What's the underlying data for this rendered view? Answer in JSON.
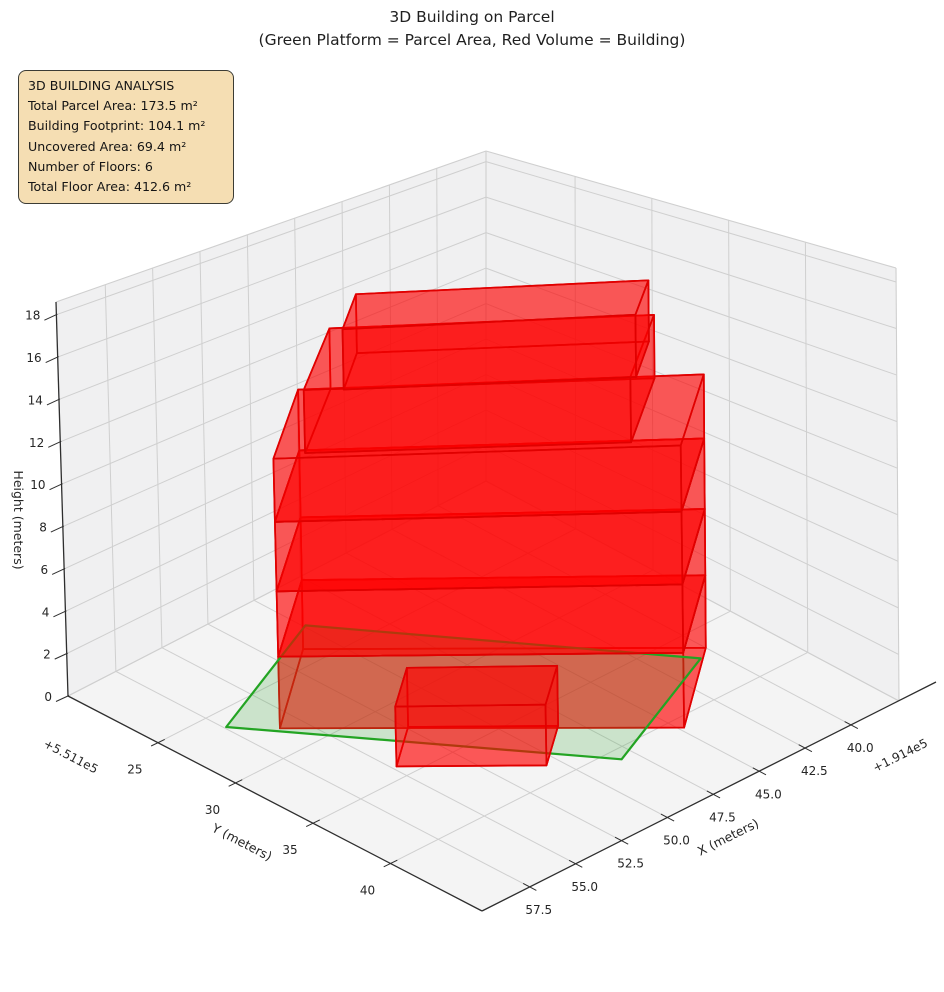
{
  "title": {
    "line1": "3D Building on Parcel",
    "line2": "(Green Platform = Parcel Area, Red Volume = Building)"
  },
  "info_box": {
    "lines": [
      "3D BUILDING ANALYSIS",
      "Total Parcel Area: 173.5 m²",
      "Building Footprint: 104.1 m²",
      "Uncovered Area: 69.4 m²",
      "Number of Floors: 6",
      "Total Floor Area: 412.6 m²"
    ],
    "bg_color": "#f5deb3",
    "border_color": "#3c3c35"
  },
  "chart_data": {
    "type": "3d-building-plot",
    "legend_note": "Green Platform = Parcel Area, Red Volume = Building",
    "stats": {
      "total_parcel_area_m2": 173.5,
      "building_footprint_m2": 104.1,
      "uncovered_area_m2": 69.4,
      "number_of_floors": 6,
      "total_floor_area_m2": 412.6
    },
    "x_axis": {
      "label": "X (meters)",
      "offset_text": "+1.914e5",
      "tick_values": [
        40.0,
        42.5,
        45.0,
        47.5,
        50.0,
        52.5,
        55.0,
        57.5
      ],
      "tick_labels": [
        "40.0",
        "42.5",
        "45.0",
        "47.5",
        "50.0",
        "52.5",
        "55.0",
        "57.5"
      ]
    },
    "y_axis": {
      "label": "Y (meters)",
      "offset_text": "+5.511e5",
      "tick_values": [
        25,
        30,
        35,
        40
      ],
      "tick_labels": [
        "25",
        "30",
        "35",
        "40"
      ]
    },
    "z_axis": {
      "label": "Height (meters)",
      "tick_values": [
        0,
        2,
        4,
        6,
        8,
        10,
        12,
        14,
        16,
        18
      ],
      "tick_labels": [
        "0",
        "2",
        "4",
        "6",
        "8",
        "10",
        "12",
        "14",
        "16",
        "18"
      ]
    },
    "axes_limits": {
      "x": [
        37.4,
        60.1
      ],
      "y": [
        19.2,
        45.9
      ],
      "z": [
        0,
        18.6
      ]
    },
    "parcel": {
      "name": "parcel-platform",
      "z": 0,
      "polygon": [
        [
          57.4,
          26.2
        ],
        [
          49.9,
          22.4
        ],
        [
          40.7,
          37.0
        ],
        [
          48.2,
          40.8
        ]
      ]
    },
    "volumes": [
      {
        "name": "floor-1",
        "z0": 0.0,
        "z1": 3.4,
        "footprint": [
          [
            56.0,
            28.0
          ],
          [
            44.8,
            40.8
          ],
          [
            40.0,
            36.5
          ],
          [
            51.2,
            23.8
          ]
        ]
      },
      {
        "name": "floor-2",
        "z0": 3.4,
        "z1": 6.5,
        "footprint": [
          [
            56.0,
            28.0
          ],
          [
            44.8,
            40.8
          ],
          [
            40.0,
            36.5
          ],
          [
            51.2,
            23.8
          ]
        ]
      },
      {
        "name": "floor-3",
        "z0": 6.5,
        "z1": 9.8,
        "footprint": [
          [
            56.0,
            28.0
          ],
          [
            44.8,
            40.8
          ],
          [
            40.0,
            36.5
          ],
          [
            51.2,
            23.8
          ]
        ]
      },
      {
        "name": "floor-4",
        "z0": 9.8,
        "z1": 12.8,
        "footprint": [
          [
            56.0,
            28.0
          ],
          [
            44.8,
            40.8
          ],
          [
            40.0,
            36.5
          ],
          [
            51.2,
            23.8
          ]
        ]
      },
      {
        "name": "floor-5",
        "z0": 12.8,
        "z1": 15.8,
        "footprint": [
          [
            54.8,
            28.6
          ],
          [
            45.8,
            38.8
          ],
          [
            41.4,
            35.0
          ],
          [
            50.3,
            24.8
          ]
        ]
      },
      {
        "name": "floor-6",
        "z0": 14.6,
        "z1": 17.5,
        "footprint": [
          [
            52.2,
            28.0
          ],
          [
            44.1,
            37.1
          ],
          [
            41.6,
            34.9
          ],
          [
            49.6,
            25.7
          ]
        ]
      },
      {
        "name": "ground-annex",
        "z0": 0.0,
        "z1": 2.8,
        "footprint": [
          [
            54.8,
            34.1
          ],
          [
            50.6,
            38.8
          ],
          [
            48.2,
            36.7
          ],
          [
            52.4,
            32.0
          ]
        ]
      }
    ],
    "draw_order": [
      "floor-1",
      "parcel",
      "floor-2",
      "floor-3",
      "floor-4",
      "floor-5",
      "floor-6",
      "ground-annex"
    ],
    "colors": {
      "building_fill": "rgba(255,0,0,0.40)",
      "building_edge": "#e00000",
      "parcel_fill": "rgba(60,170,60,0.22)",
      "parcel_edge": "#23a423",
      "pane_wall": "#f0f0f1",
      "pane_floor": "#f4f4f4",
      "grid": "#cfcfcf",
      "axis_line": "#2e2e2e",
      "tick_text": "#262626"
    }
  }
}
